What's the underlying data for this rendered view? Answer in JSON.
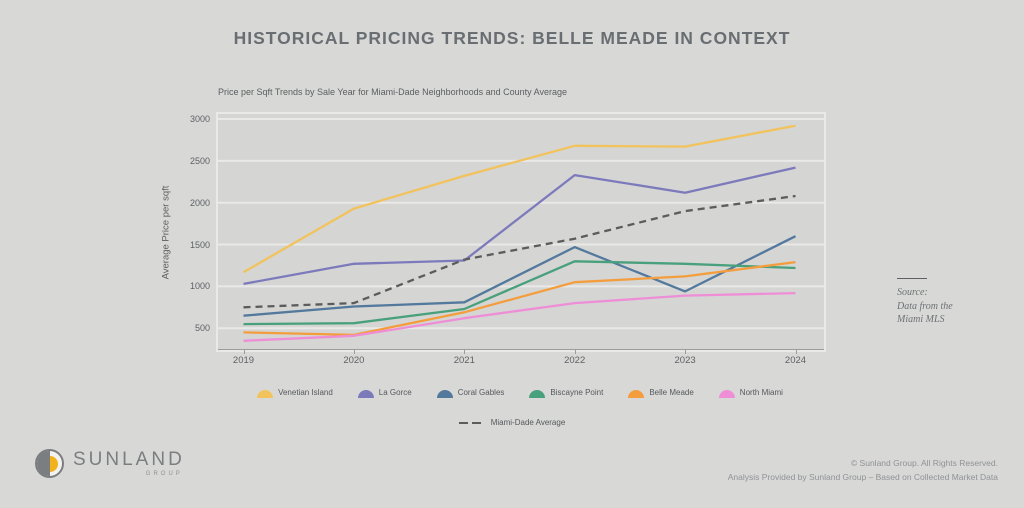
{
  "title": "HISTORICAL PRICING TRENDS: BELLE MEADE IN CONTEXT",
  "chart_data": {
    "type": "line",
    "title": "Price per Sqft Trends by Sale Year for Miami-Dade Neighborhoods and County Average",
    "xlabel": "",
    "ylabel": "Average Price per sqft",
    "x": [
      "2019",
      "2020",
      "2021",
      "2022",
      "2023",
      "2024"
    ],
    "ylim": [
      240,
      3060
    ],
    "yticks": [
      500,
      1000,
      1500,
      2000,
      2500,
      3000
    ],
    "grid": true,
    "legend_position": "bottom",
    "series": [
      {
        "name": "Venetian Island",
        "color": "#f2c35c",
        "style": "solid",
        "values": [
          1170,
          1930,
          2320,
          2680,
          2670,
          2920
        ]
      },
      {
        "name": "La Gorce",
        "color": "#7d7abc",
        "style": "solid",
        "values": [
          1030,
          1270,
          1310,
          2330,
          2120,
          2420
        ]
      },
      {
        "name": "Coral Gables",
        "color": "#53799c",
        "style": "solid",
        "values": [
          650,
          760,
          810,
          1470,
          940,
          1600
        ]
      },
      {
        "name": "Biscayne Point",
        "color": "#49a07c",
        "style": "solid",
        "values": [
          550,
          560,
          730,
          1300,
          1270,
          1220
        ]
      },
      {
        "name": "Belle Meade",
        "color": "#f49d3d",
        "style": "solid",
        "values": [
          450,
          420,
          690,
          1050,
          1120,
          1290
        ]
      },
      {
        "name": "North Miami",
        "color": "#ee8ed6",
        "style": "solid",
        "values": [
          350,
          410,
          620,
          800,
          890,
          920
        ]
      },
      {
        "name": "Miami-Dade Average",
        "color": "#5c5c5c",
        "style": "dashed",
        "values": [
          750,
          800,
          1320,
          1570,
          1900,
          2080
        ]
      }
    ]
  },
  "source_note": {
    "label": "Source:",
    "line1": "Data from the",
    "line2": "Miami MLS"
  },
  "logo": {
    "name": "SUNLAND",
    "subname": "GROUP"
  },
  "footer": {
    "line1": "© Sunland Group. All Rights Reserved.",
    "line2": "Analysis Provided by Sunland Group – Based on Collected Market Data"
  }
}
